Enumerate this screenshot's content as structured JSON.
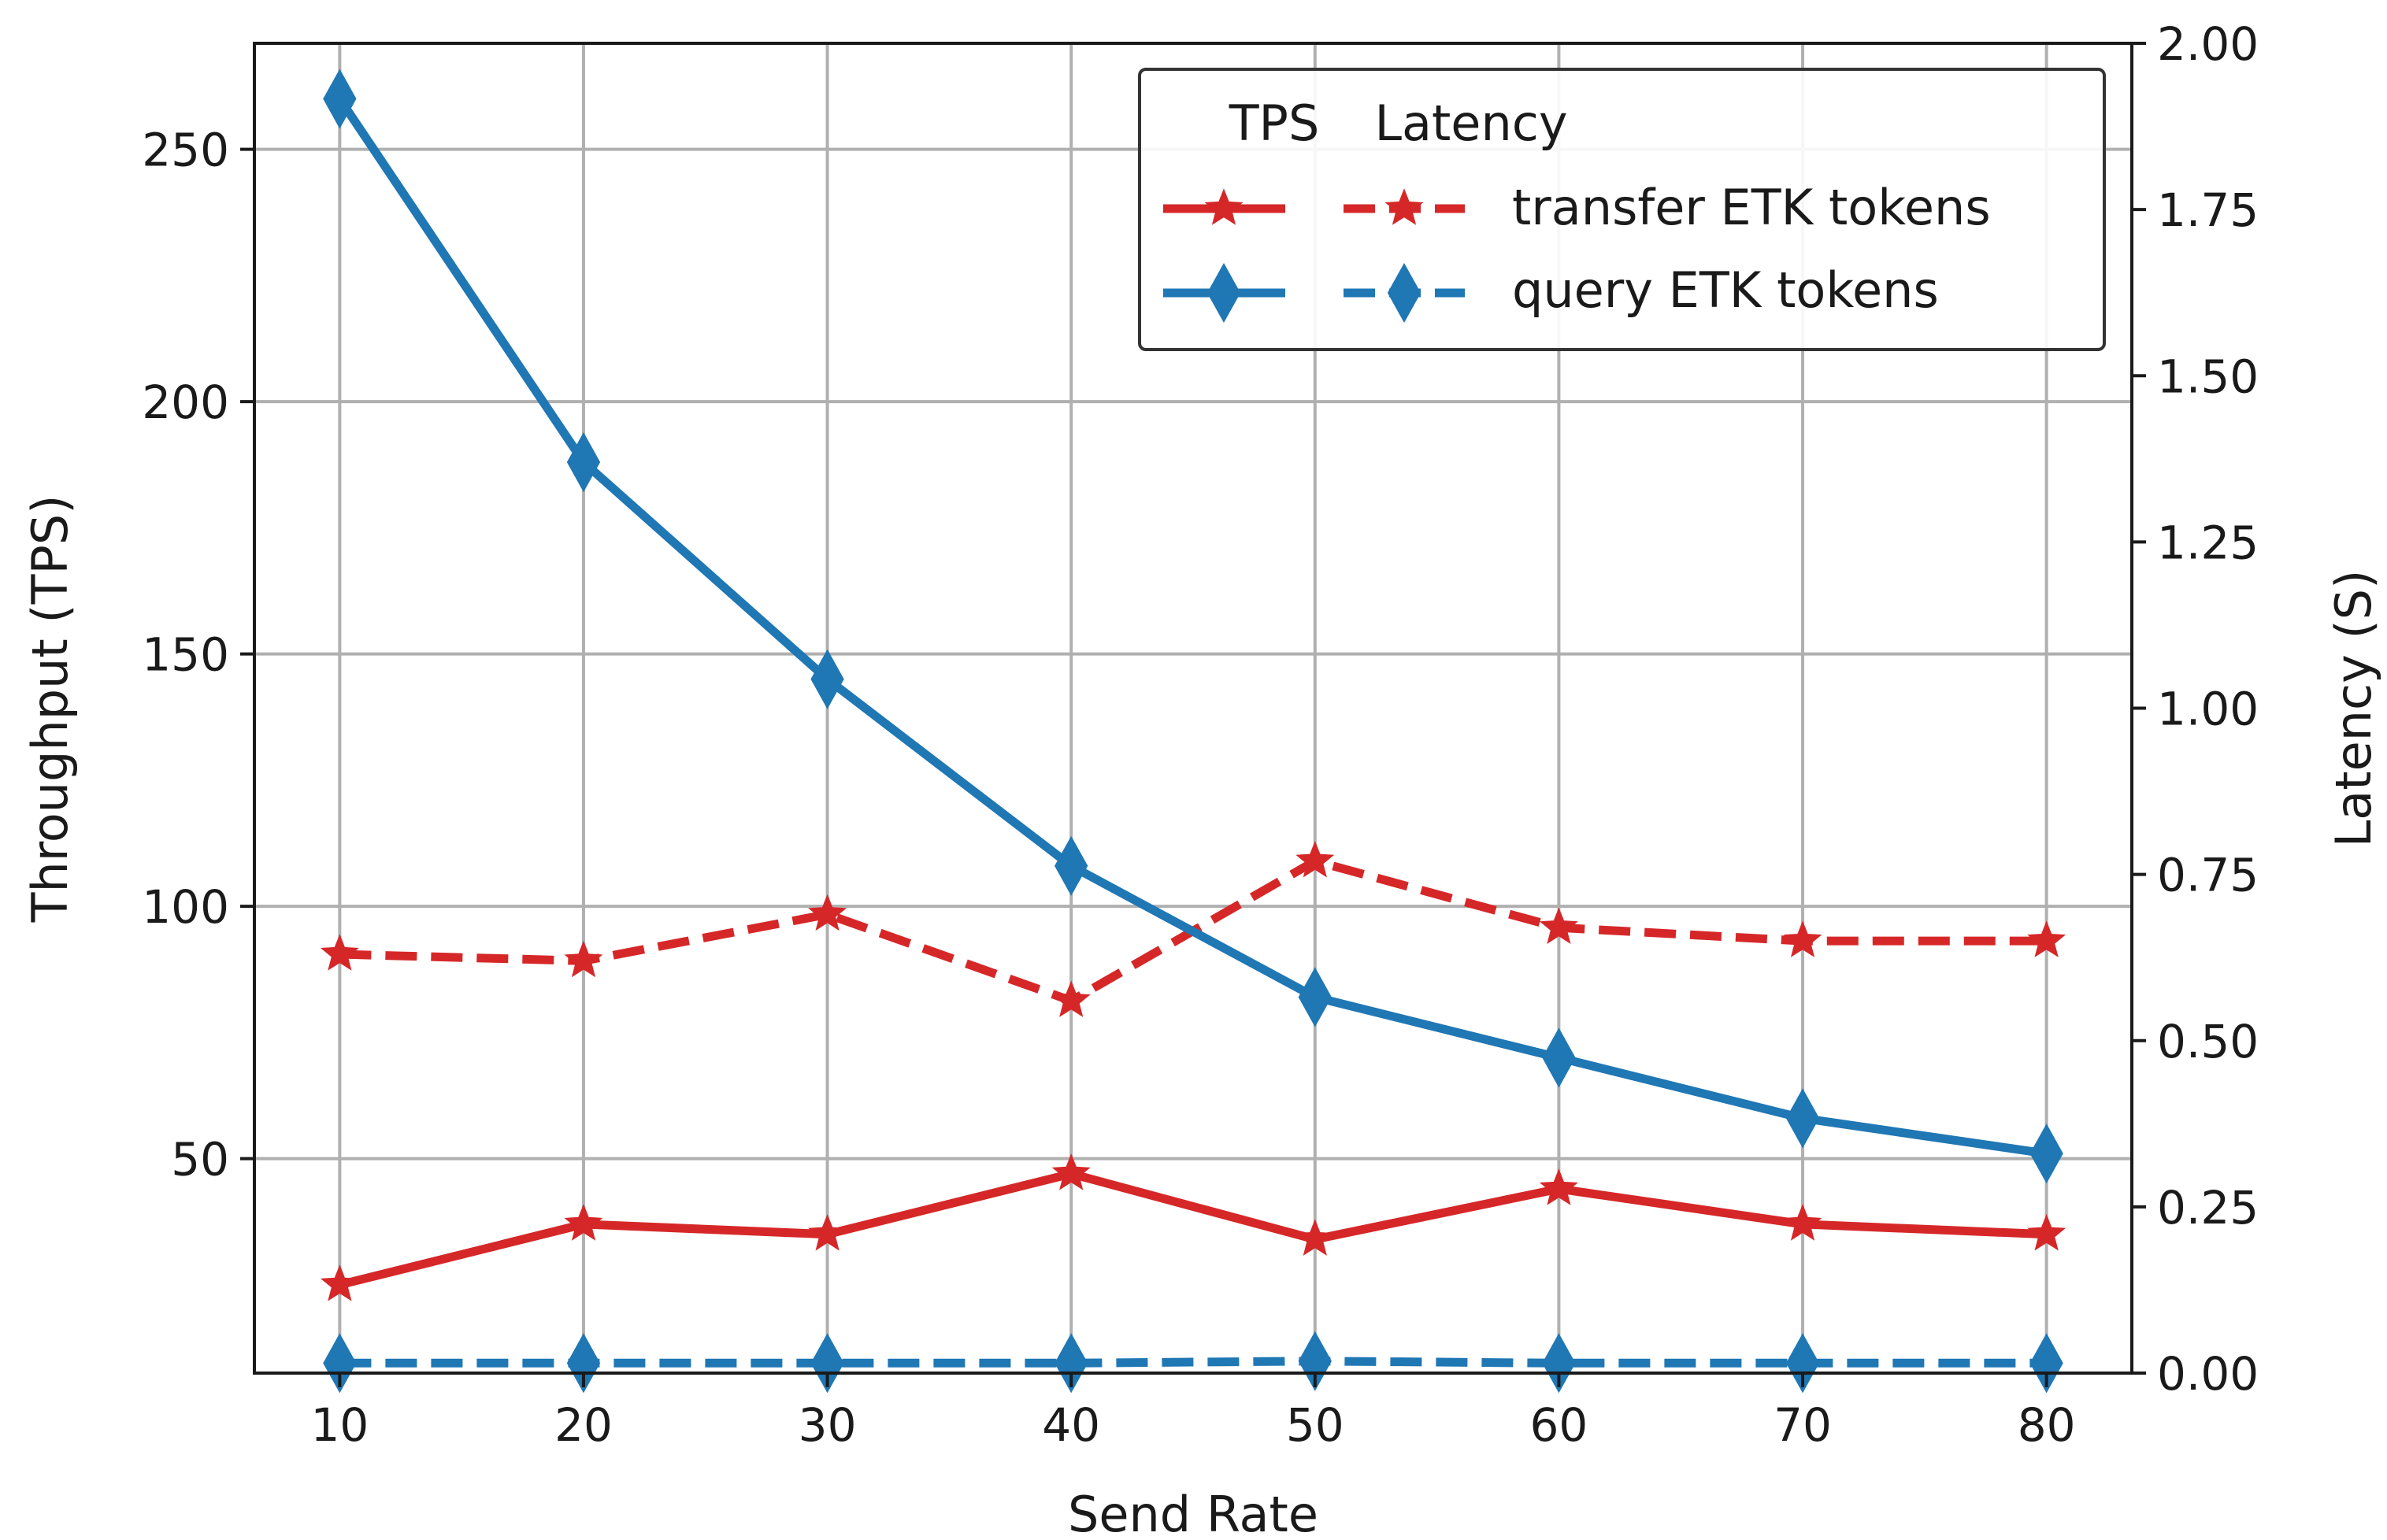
{
  "chart_data": {
    "type": "line",
    "title": "",
    "xlabel": "Send Rate",
    "ylabel_left": "Throughput (TPS)",
    "ylabel_right": "Latency (S)",
    "x": [
      10,
      20,
      30,
      40,
      50,
      60,
      70,
      80
    ],
    "x_ticks": [
      "10",
      "20",
      "30",
      "40",
      "50",
      "60",
      "70",
      "80"
    ],
    "xlim": [
      6.5,
      83.5
    ],
    "ylim_left": [
      7.5,
      271
    ],
    "ylim_right": [
      0,
      2.0
    ],
    "y_ticks_left": [
      "50",
      "100",
      "150",
      "200",
      "250"
    ],
    "y_tick_values_left": [
      50,
      100,
      150,
      200,
      250
    ],
    "y_ticks_right": [
      "0.00",
      "0.25",
      "0.50",
      "0.75",
      "1.00",
      "1.25",
      "1.50",
      "1.75",
      "2.00"
    ],
    "y_tick_values_right": [
      0,
      0.25,
      0.5,
      0.75,
      1.0,
      1.25,
      1.5,
      1.75,
      2.0
    ],
    "grid": true,
    "legend": {
      "position": "top-right",
      "header_tps": "TPS",
      "header_latency": "Latency",
      "entries": [
        "transfer ETK tokens",
        "query ETK tokens"
      ]
    },
    "series": [
      {
        "name": "transfer ETK tokens",
        "metric": "TPS",
        "axis": "left",
        "color": "#d62728",
        "marker": "star",
        "dash": "solid",
        "values": [
          25,
          37,
          35,
          47,
          34,
          44,
          37,
          35
        ]
      },
      {
        "name": "transfer ETK tokens",
        "metric": "Latency",
        "axis": "right",
        "color": "#d62728",
        "marker": "star",
        "dash": "dashed",
        "values": [
          0.63,
          0.62,
          0.69,
          0.56,
          0.77,
          0.67,
          0.65,
          0.65
        ]
      },
      {
        "name": "query ETK tokens",
        "metric": "TPS",
        "axis": "left",
        "color": "#1f77b4",
        "marker": "diamond",
        "dash": "solid",
        "values": [
          260,
          188,
          145,
          108,
          82,
          70,
          58,
          51
        ]
      },
      {
        "name": "query ETK tokens",
        "metric": "Latency",
        "axis": "right",
        "color": "#1f77b4",
        "marker": "diamond",
        "dash": "dashed",
        "values": [
          0.015,
          0.015,
          0.015,
          0.015,
          0.018,
          0.015,
          0.015,
          0.015
        ]
      }
    ]
  }
}
